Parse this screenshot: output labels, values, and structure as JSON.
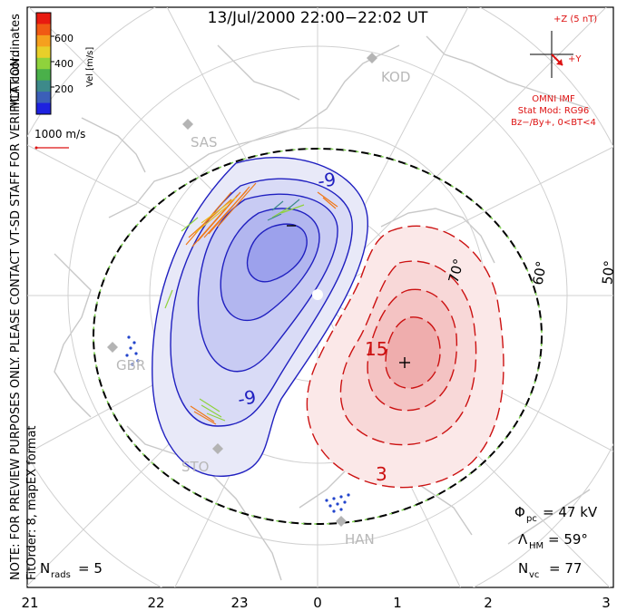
{
  "title": "13/Jul/2000  22:00−22:02  UT",
  "colorbar": {
    "label": "Vel [m/s]",
    "ticks": [
      "600",
      "400",
      "200"
    ],
    "colors": [
      "#e81a10",
      "#f05a14",
      "#f5a01e",
      "#e8cf2a",
      "#8fd23c",
      "#4ab04a",
      "#3d8a8a",
      "#3b5fb8",
      "#1e22e0"
    ]
  },
  "coordinates_label": "MLT coordinates",
  "vector_scale": "1000 m/s",
  "preview_note": "NOTE: FOR PREVIEW PURPOSES ONLY. PLEASE CONTACT VT-SD STAFF FOR VERIFICATION.",
  "fit_note": "FitOrder: 8, mapEX format",
  "imf": {
    "z_label": "+Z (5 nT)",
    "y_label": "+Y",
    "source": "OMNI IMF",
    "model": "Stat Mod: RG96",
    "condition": "Bz−/By+, 0<BT<4"
  },
  "stations": [
    "KOD",
    "SAS",
    "GBR",
    "STO",
    "HAN"
  ],
  "latitudes": [
    "70°",
    "60°",
    "50°"
  ],
  "contours": [
    "-9",
    "-9",
    "15",
    "3"
  ],
  "stats": {
    "phi_pc_label": "Φ",
    "phi_pc_sub": "pc",
    "phi_pc_value": "= 47 kV",
    "lambda_hm_label": "Λ",
    "lambda_hm_sub": "HM",
    "lambda_hm_value": "= 59°",
    "n_vc_label": "N",
    "n_vc_sub": "vc",
    "n_vc_value": "= 77",
    "n_rads_label": "N",
    "n_rads_sub": "rads",
    "n_rads_value": "= 5"
  },
  "mlt_axis": [
    "21",
    "22",
    "23",
    "0",
    "1",
    "2",
    "3"
  ]
}
